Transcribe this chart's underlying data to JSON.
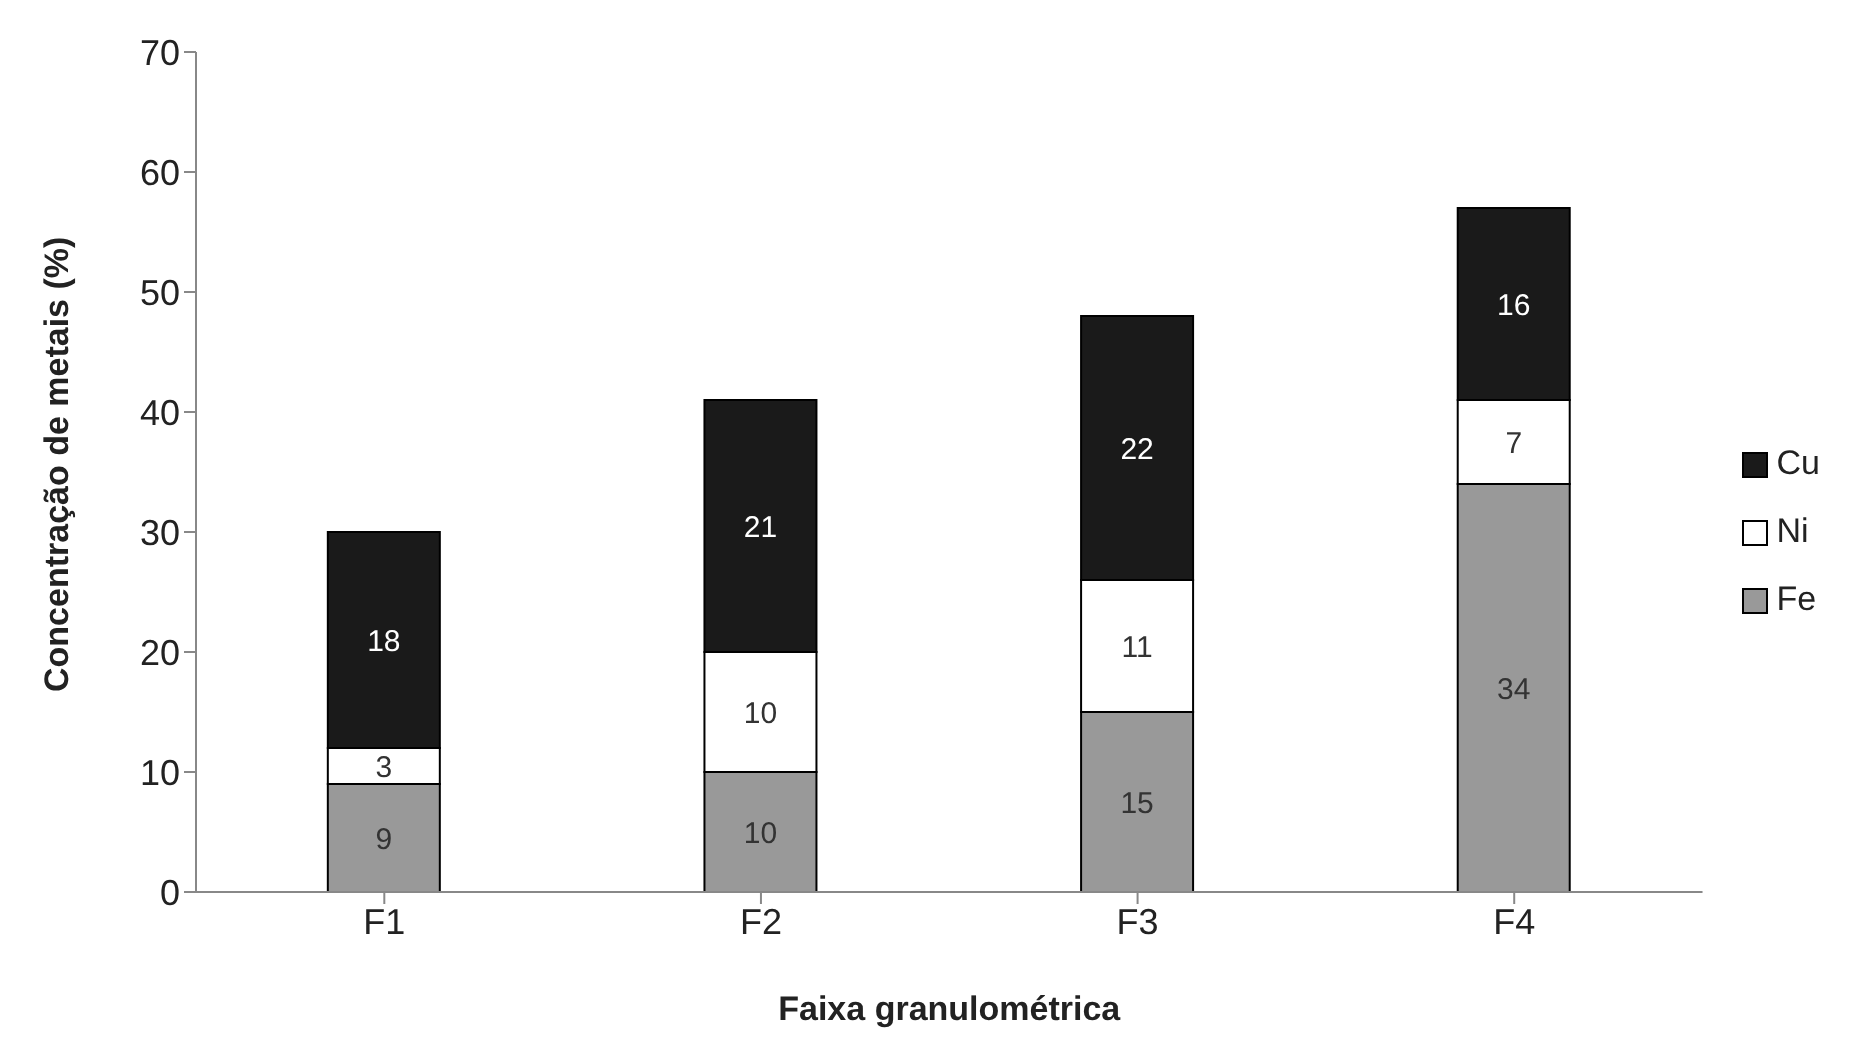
{
  "chart_data": {
    "type": "bar",
    "stacked": true,
    "xlabel": "Faixa granulométrica",
    "ylabel": "Concentração  de metais (%)",
    "categories": [
      "F1",
      "F2",
      "F3",
      "F4"
    ],
    "series": [
      {
        "name": "Fe",
        "color": "#999999",
        "values": [
          9,
          10,
          15,
          34
        ]
      },
      {
        "name": "Ni",
        "color": "#ffffff",
        "values": [
          3,
          10,
          11,
          7
        ]
      },
      {
        "name": "Cu",
        "color": "#1a1a1a",
        "values": [
          18,
          21,
          22,
          16
        ]
      }
    ],
    "ylim": [
      0,
      70
    ],
    "yticks": [
      0,
      10,
      20,
      30,
      40,
      50,
      60,
      70
    ],
    "grid": false,
    "legend": "right",
    "data_labels": true
  }
}
